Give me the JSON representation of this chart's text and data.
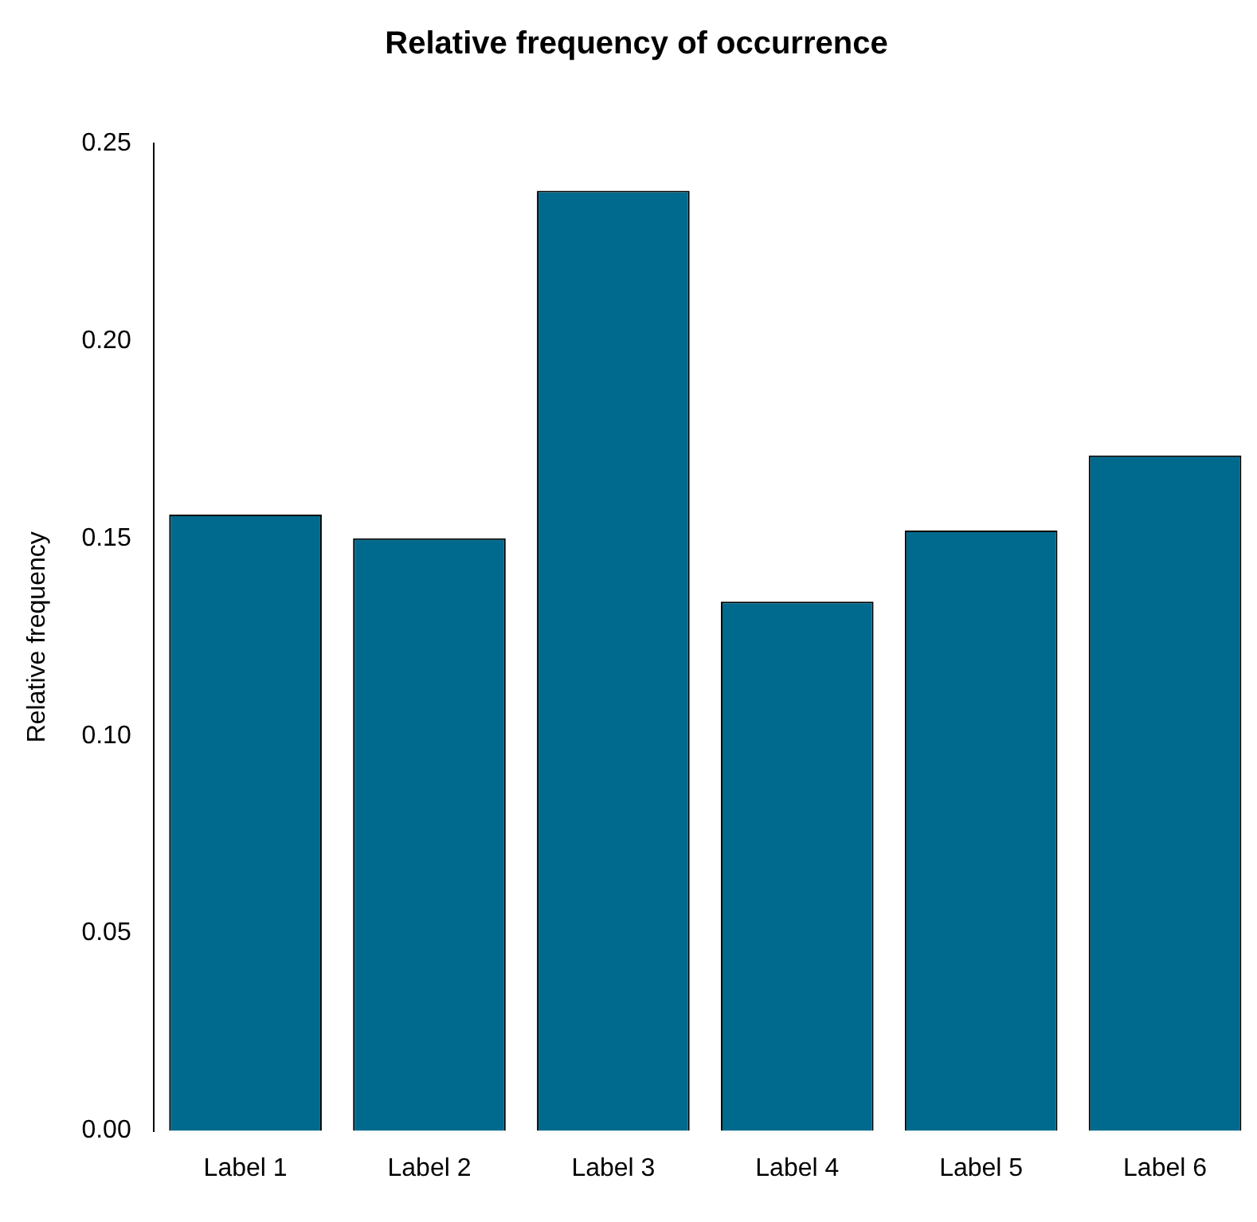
{
  "chart_data": {
    "type": "bar",
    "title": "Relative frequency of occurrence",
    "ylabel": "Relative frequency",
    "categories": [
      "Label 1",
      "Label 2",
      "Label 3",
      "Label 4",
      "Label 5",
      "Label 6"
    ],
    "values": [
      0.156,
      0.15,
      0.238,
      0.134,
      0.152,
      0.171
    ],
    "color": "#006a8e",
    "ylim": [
      0,
      0.25
    ],
    "yticks": [
      {
        "value": 0,
        "label": "0.00"
      },
      {
        "value": 0.05,
        "label": "0.05"
      },
      {
        "value": 0.1,
        "label": "0.10"
      },
      {
        "value": 0.15,
        "label": "0.15"
      },
      {
        "value": 0.2,
        "label": "0.20"
      },
      {
        "value": 0.25,
        "label": "0.25"
      }
    ],
    "grid": false,
    "legend": false
  }
}
